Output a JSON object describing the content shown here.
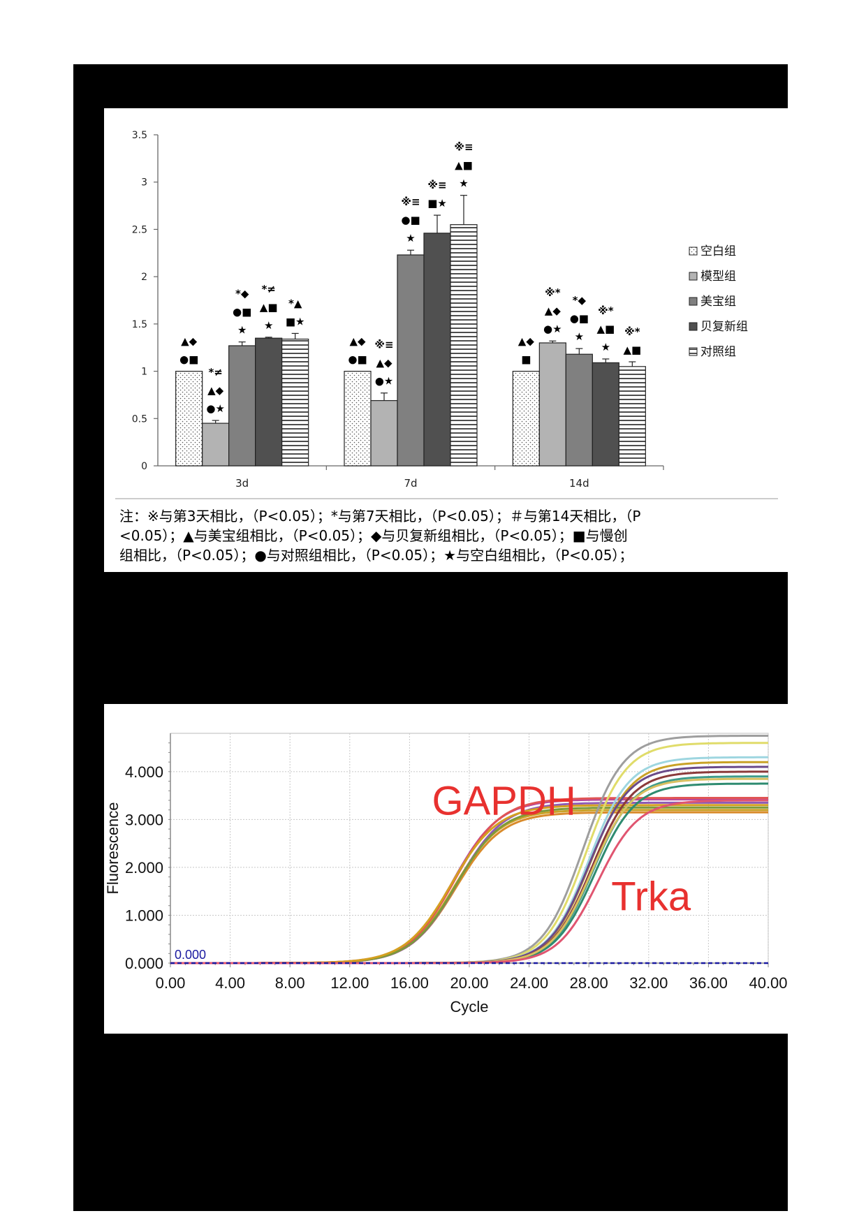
{
  "chart_data": [
    {
      "type": "bar",
      "categories": [
        "3d",
        "7d",
        "14d"
      ],
      "ylim": [
        0,
        3.5
      ],
      "yticks": [
        "0",
        "0.5",
        "1",
        "1.5",
        "2",
        "2.5",
        "3",
        "3.5"
      ],
      "legend_placement": "right",
      "series": [
        {
          "name": "空白组",
          "pattern": "dots",
          "color": "#ffffff",
          "values": [
            1.0,
            1.0,
            1.0
          ],
          "errors": [
            0,
            0,
            0
          ]
        },
        {
          "name": "模型组",
          "pattern": "solid",
          "color": "#b3b3b3",
          "values": [
            0.45,
            0.69,
            1.3
          ],
          "errors": [
            0.03,
            0.08,
            0.02
          ]
        },
        {
          "name": "美宝组",
          "pattern": "solid",
          "color": "#808080",
          "values": [
            1.27,
            2.23,
            1.18
          ],
          "errors": [
            0.04,
            0.05,
            0.06
          ]
        },
        {
          "name": "贝复新组",
          "pattern": "solid",
          "color": "#505050",
          "values": [
            1.35,
            2.46,
            1.09
          ],
          "errors": [
            0.01,
            0.19,
            0.04
          ]
        },
        {
          "name": "对照组",
          "pattern": "hlines",
          "color": "#ffffff",
          "values": [
            1.34,
            2.55,
            1.05
          ],
          "errors": [
            0.06,
            0.31,
            0.05
          ]
        }
      ],
      "annotations": [
        [
          [
            "▲◆",
            "●■"
          ],
          [
            "*≠",
            "▲◆",
            "●★"
          ],
          [
            "*◆",
            "●■",
            "★"
          ],
          [
            "*≠",
            "▲■",
            "★"
          ],
          [
            "*▲",
            "■★"
          ]
        ],
        [
          [
            "▲◆",
            "●■"
          ],
          [
            "※≡",
            "▲◆",
            "●★"
          ],
          [
            "※≡",
            "●■",
            "★"
          ],
          [
            "※≡",
            "■★"
          ],
          [
            "※≡",
            "▲■",
            "★"
          ]
        ],
        [
          [
            "▲◆",
            "■"
          ],
          [
            "※*",
            "▲◆",
            "●★"
          ],
          [
            "*◆",
            "●■",
            "★"
          ],
          [
            "※*",
            "▲■",
            "★"
          ],
          [
            "※*",
            "▲■"
          ]
        ]
      ],
      "note_lines": [
        "注：※与第3天相比，（P<0.05）；*与第7天相比，（P<0.05）；＃与第14天相比，（P",
        "<0.05）；▲与美宝组相比，（P<0.05）；◆与贝复新组相比，（P<0.05）；■与慢创",
        "组相比，（P<0.05）；●与对照组相比，（P<0.05）；★与空白组相比，（P<0.05）；"
      ]
    },
    {
      "type": "line",
      "xlabel": "Cycle",
      "ylabel": "Fluorescence",
      "xlim": [
        0,
        40
      ],
      "ylim": [
        0,
        4.8
      ],
      "xticks": [
        "0.00",
        "4.00",
        "8.00",
        "12.00",
        "16.00",
        "20.00",
        "24.00",
        "28.00",
        "32.00",
        "36.00",
        "40.00"
      ],
      "yticks": [
        "0.000",
        "1.000",
        "2.000",
        "3.000",
        "4.000"
      ],
      "threshold_label": "0.000",
      "threshold_value": 0,
      "grid": true,
      "annotations": [
        {
          "text": "GAPDH",
          "x": 17.5,
          "y": 3.1,
          "color": "#e8312f"
        },
        {
          "text": "Trka",
          "x": 29.5,
          "y": 1.1,
          "color": "#e8312f"
        }
      ],
      "series": [
        {
          "group": "GAPDH",
          "curves": [
            {
              "color": "#c9a227",
              "midpoint": 19.0,
              "plateau": 3.2,
              "slope": 1.55
            },
            {
              "color": "#d98b2b",
              "midpoint": 19.1,
              "plateau": 3.15,
              "slope": 1.55
            },
            {
              "color": "#b8479b",
              "midpoint": 18.9,
              "plateau": 3.42,
              "slope": 1.55
            },
            {
              "color": "#8e5bb5",
              "midpoint": 19.2,
              "plateau": 3.35,
              "slope": 1.55
            },
            {
              "color": "#e05555",
              "midpoint": 19.0,
              "plateau": 3.45,
              "slope": 1.55
            },
            {
              "color": "#7d9a3a",
              "midpoint": 19.1,
              "plateau": 3.25,
              "slope": 1.55
            },
            {
              "color": "#d4a020",
              "midpoint": 18.8,
              "plateau": 3.3,
              "slope": 1.55
            }
          ]
        },
        {
          "group": "Trka",
          "curves": [
            {
              "color": "#9e9e9e",
              "midpoint": 27.6,
              "plateau": 4.75,
              "slope": 1.35
            },
            {
              "color": "#e0dc6a",
              "midpoint": 27.8,
              "plateau": 4.6,
              "slope": 1.35
            },
            {
              "color": "#9ed6e0",
              "midpoint": 28.0,
              "plateau": 4.3,
              "slope": 1.35
            },
            {
              "color": "#c9a227",
              "midpoint": 28.1,
              "plateau": 4.2,
              "slope": 1.35
            },
            {
              "color": "#6a4a8a",
              "midpoint": 28.0,
              "plateau": 4.1,
              "slope": 1.35
            },
            {
              "color": "#8b3a3a",
              "midpoint": 28.2,
              "plateau": 4.0,
              "slope": 1.35
            },
            {
              "color": "#3f9c8a",
              "midpoint": 28.3,
              "plateau": 3.9,
              "slope": 1.35
            },
            {
              "color": "#2e8b70",
              "midpoint": 28.4,
              "plateau": 3.75,
              "slope": 1.35
            },
            {
              "color": "#d9c060",
              "midpoint": 28.2,
              "plateau": 3.85,
              "slope": 1.35
            },
            {
              "color": "#e05570",
              "midpoint": 28.6,
              "plateau": 3.4,
              "slope": 1.35
            }
          ]
        }
      ]
    }
  ]
}
